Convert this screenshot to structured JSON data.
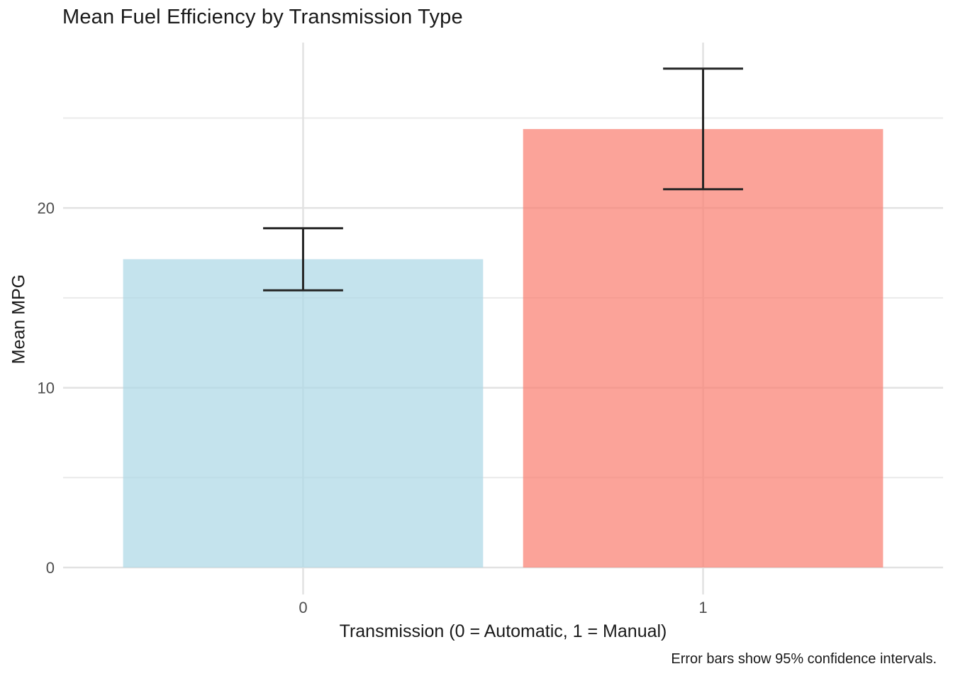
{
  "chart_data": {
    "type": "bar",
    "title": "Mean Fuel Efficiency by Transmission Type",
    "xlabel": "Transmission (0 = Automatic, 1 = Manual)",
    "ylabel": "Mean MPG",
    "caption": "Error bars show 95% confidence intervals.",
    "categories": [
      "0",
      "1"
    ],
    "values": [
      17.15,
      24.39
    ],
    "error_bars": [
      {
        "low": 15.42,
        "high": 18.87
      },
      {
        "low": 21.04,
        "high": 27.75
      }
    ],
    "bar_fills": [
      "#ADD8E6",
      "#FA8072"
    ],
    "bar_alpha": 0.72,
    "errorbar_color": "#252525",
    "y_major_ticks": [
      0,
      10,
      20
    ],
    "y_minor_ticks": [
      5,
      15,
      25
    ],
    "ylim": [
      -1.5,
      29.2
    ],
    "bar_width_frac": 0.9,
    "cap_width_frac": 0.2,
    "grid": "major+minor horizontal, major vertical",
    "legend": "none",
    "styles": {
      "background": "#ffffff",
      "grid_major_color": "#e2e2e2",
      "grid_minor_color": "#eaeaea",
      "tick_label_color": "#4d4d4d",
      "text_color": "#191919"
    }
  }
}
